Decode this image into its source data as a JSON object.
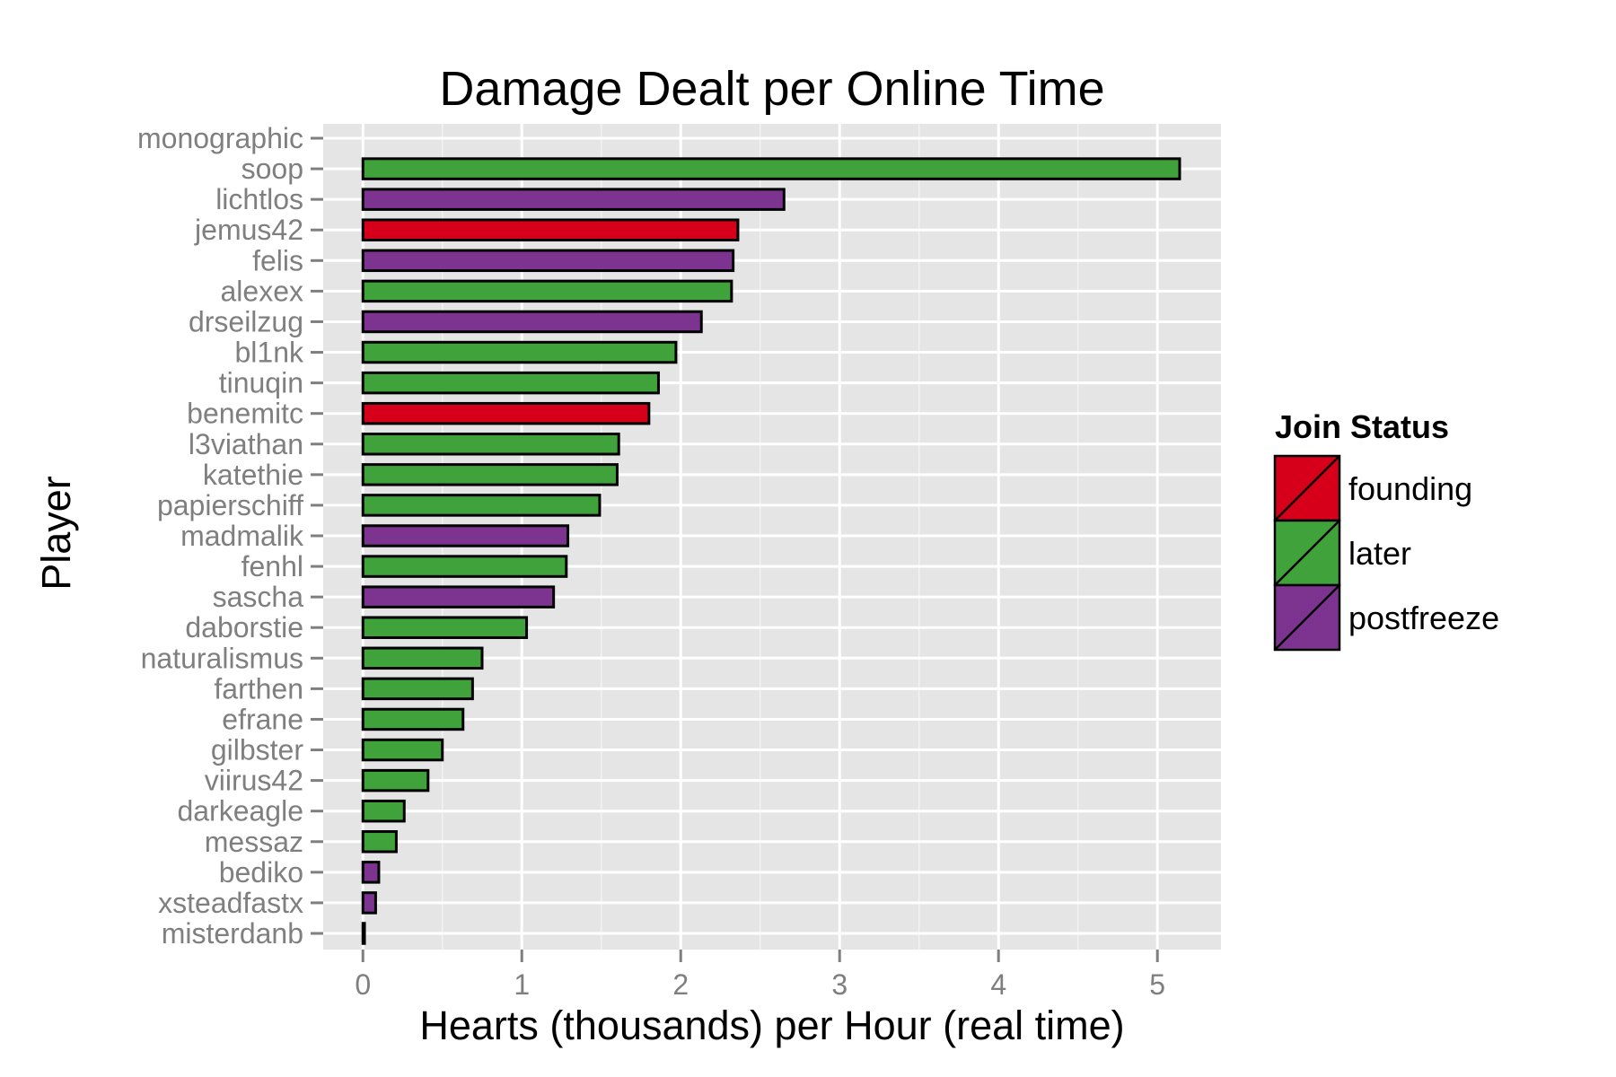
{
  "chart_data": {
    "type": "bar",
    "orientation": "horizontal",
    "title": "Damage Dealt per Online Time",
    "xlabel": "Hearts (thousands) per Hour (real time)",
    "ylabel": "Player",
    "xlim": [
      -0.25,
      5.4
    ],
    "x_ticks": [
      0,
      1,
      2,
      3,
      4,
      5
    ],
    "grid": true,
    "legend": {
      "title": "Join Status",
      "placement": "right",
      "entries": [
        {
          "name": "founding",
          "color": "#d7001b"
        },
        {
          "name": "later",
          "color": "#3fa23a"
        },
        {
          "name": "postfreeze",
          "color": "#7d3490"
        }
      ]
    },
    "categories": [
      "monographic",
      "soop",
      "lichtlos",
      "jemus42",
      "felis",
      "alexex",
      "drseilzug",
      "bl1nk",
      "tinuqin",
      "benemitc",
      "l3viathan",
      "katethie",
      "papierschiff",
      "madmalik",
      "fenhl",
      "sascha",
      "daborstie",
      "naturalismus",
      "farthen",
      "efrane",
      "gilbster",
      "viirus42",
      "darkeagle",
      "messaz",
      "bediko",
      "xsteadfastx",
      "misterdanb"
    ],
    "values": [
      0,
      5.14,
      2.65,
      2.36,
      2.33,
      2.32,
      2.13,
      1.97,
      1.86,
      1.8,
      1.61,
      1.6,
      1.49,
      1.29,
      1.28,
      1.2,
      1.03,
      0.75,
      0.69,
      0.63,
      0.5,
      0.41,
      0.26,
      0.21,
      0.1,
      0.08,
      0.01
    ],
    "groups": [
      "",
      "later",
      "postfreeze",
      "founding",
      "postfreeze",
      "later",
      "postfreeze",
      "later",
      "later",
      "founding",
      "later",
      "later",
      "later",
      "postfreeze",
      "later",
      "postfreeze",
      "later",
      "later",
      "later",
      "later",
      "later",
      "later",
      "later",
      "later",
      "postfreeze",
      "postfreeze",
      "postfreeze"
    ]
  }
}
